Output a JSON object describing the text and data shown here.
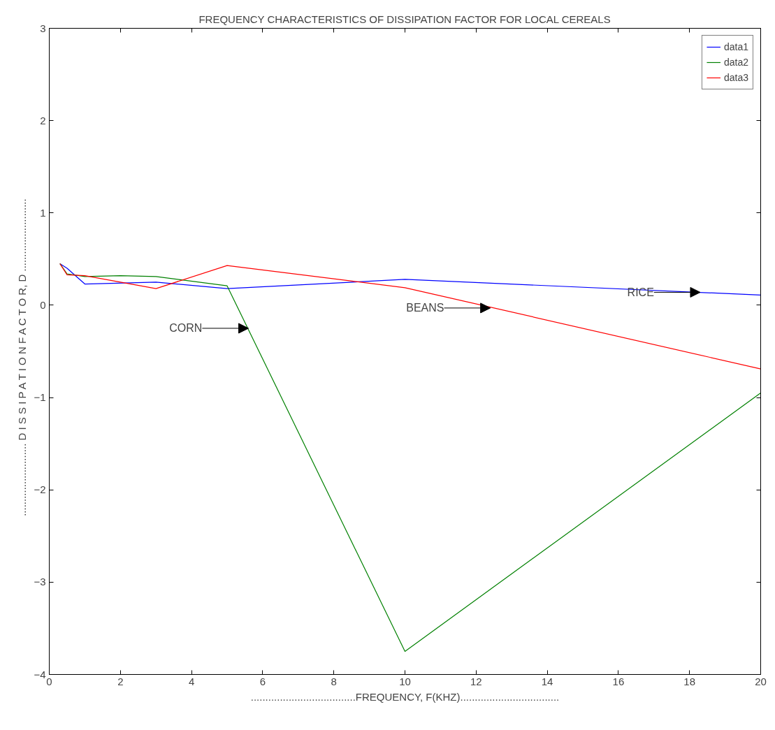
{
  "chart_data": {
    "type": "line",
    "title": "FREQUENCY CHARACTERISTICS OF DISSIPATION FACTOR FOR LOCAL CEREALS",
    "xlabel": "....................................FREQUENCY, F(KHZ)..................................",
    "ylabel": "......................... D I S S I P A T I O N   F A C T O R,  D .........................",
    "xlim": [
      0,
      20
    ],
    "ylim": [
      -4,
      3
    ],
    "xticks": [
      0,
      2,
      4,
      6,
      8,
      10,
      12,
      14,
      16,
      18,
      20
    ],
    "yticks": [
      -4,
      -3,
      -2,
      -1,
      0,
      1,
      2,
      3
    ],
    "grid": false,
    "legend": "top right",
    "line_style": "solid",
    "marker": "none",
    "series": [
      {
        "name": "data1",
        "color": "#0000ff",
        "x": [
          0.3,
          0.5,
          1,
          3,
          5,
          10,
          20
        ],
        "values": [
          0.45,
          0.4,
          0.23,
          0.25,
          0.18,
          0.28,
          0.11
        ]
      },
      {
        "name": "data2",
        "color": "#008000",
        "x": [
          0.3,
          0.5,
          1,
          2,
          3,
          5,
          10,
          20
        ],
        "values": [
          0.45,
          0.34,
          0.31,
          0.32,
          0.31,
          0.21,
          -3.75,
          -0.95
        ]
      },
      {
        "name": "data3",
        "color": "#ff0000",
        "x": [
          0.3,
          0.5,
          1,
          3,
          5,
          10,
          20
        ],
        "values": [
          0.45,
          0.33,
          0.32,
          0.18,
          0.43,
          0.19,
          -0.69
        ]
      }
    ],
    "annotations": [
      {
        "text": "RICE",
        "x": 18.3,
        "y": 0.14
      },
      {
        "text": "BEANS",
        "x": 12.4,
        "y": -0.03
      },
      {
        "text": "CORN",
        "x": 5.6,
        "y": -0.25
      }
    ]
  }
}
